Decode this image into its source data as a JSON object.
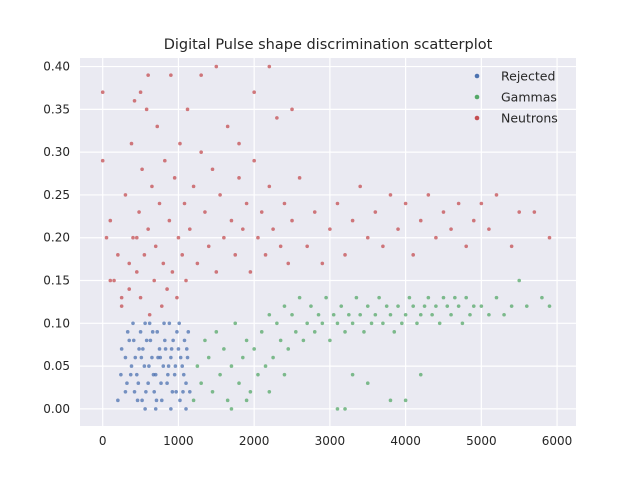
{
  "chart_data": {
    "type": "scatter",
    "title": "Digital Pulse shape discrimination scatterplot",
    "xlabel": "",
    "ylabel": "",
    "xlim": [
      -300,
      6250
    ],
    "ylim": [
      -0.02,
      0.41
    ],
    "x_ticks": [
      0,
      1000,
      2000,
      3000,
      4000,
      5000,
      6000
    ],
    "x_tick_labels": [
      "0",
      "1000",
      "2000",
      "3000",
      "4000",
      "5000",
      "6000"
    ],
    "y_ticks": [
      0.0,
      0.05,
      0.1,
      0.15,
      0.2,
      0.25,
      0.3,
      0.35,
      0.4
    ],
    "y_tick_labels": [
      "0.00",
      "0.05",
      "0.10",
      "0.15",
      "0.20",
      "0.25",
      "0.30",
      "0.35",
      "0.40"
    ],
    "grid": true,
    "legend_position": "top-right",
    "series": [
      {
        "name": "Rejected",
        "color": "#4c72b0",
        "points": [
          [
            200,
            0.01
          ],
          [
            250,
            0.07
          ],
          [
            300,
            0.06
          ],
          [
            320,
            0.03
          ],
          [
            350,
            0.08
          ],
          [
            380,
            0.05
          ],
          [
            400,
            0.1
          ],
          [
            420,
            0.02
          ],
          [
            450,
            0.04
          ],
          [
            480,
            0.07
          ],
          [
            500,
            0.09
          ],
          [
            520,
            0.01
          ],
          [
            550,
            0.05
          ],
          [
            580,
            0.08
          ],
          [
            600,
            0.03
          ],
          [
            620,
            0.1
          ],
          [
            650,
            0.06
          ],
          [
            680,
            0.02
          ],
          [
            700,
            0.04
          ],
          [
            720,
            0.09
          ],
          [
            750,
            0.07
          ],
          [
            780,
            0.01
          ],
          [
            800,
            0.05
          ],
          [
            820,
            0.08
          ],
          [
            850,
            0.03
          ],
          [
            880,
            0.1
          ],
          [
            900,
            0.06
          ],
          [
            920,
            0.02
          ],
          [
            950,
            0.04
          ],
          [
            980,
            0.09
          ],
          [
            1000,
            0.07
          ],
          [
            1020,
            0.01
          ],
          [
            1050,
            0.05
          ],
          [
            1080,
            0.08
          ],
          [
            1100,
            0.03
          ],
          [
            1120,
            0.06
          ],
          [
            1150,
            0.02
          ],
          [
            430,
            0.06
          ],
          [
            470,
            0.03
          ],
          [
            530,
            0.07
          ],
          [
            570,
            0.02
          ],
          [
            630,
            0.08
          ],
          [
            670,
            0.04
          ],
          [
            730,
            0.06
          ],
          [
            770,
            0.03
          ],
          [
            830,
            0.07
          ],
          [
            870,
            0.05
          ],
          [
            930,
            0.08
          ],
          [
            970,
            0.02
          ],
          [
            1030,
            0.06
          ],
          [
            1070,
            0.04
          ],
          [
            1130,
            0.09
          ],
          [
            330,
            0.09
          ],
          [
            370,
            0.04
          ],
          [
            410,
            0.08
          ],
          [
            460,
            0.01
          ],
          [
            510,
            0.06
          ],
          [
            560,
            0.1
          ],
          [
            610,
            0.05
          ],
          [
            660,
            0.09
          ],
          [
            710,
            0.01
          ],
          [
            760,
            0.06
          ],
          [
            810,
            0.1
          ],
          [
            860,
            0.04
          ],
          [
            910,
            0.07
          ],
          [
            960,
            0.05
          ],
          [
            1010,
            0.1
          ],
          [
            1060,
            0.02
          ],
          [
            1110,
            0.07
          ],
          [
            300,
            0.02
          ],
          [
            560,
            0.0
          ],
          [
            700,
            0.0
          ],
          [
            900,
            0.0
          ],
          [
            1100,
            0.0
          ],
          [
            240,
            0.04
          ]
        ]
      },
      {
        "name": "Gammas",
        "color": "#55a868",
        "points": [
          [
            1200,
            0.01
          ],
          [
            1250,
            0.05
          ],
          [
            1300,
            0.03
          ],
          [
            1350,
            0.08
          ],
          [
            1400,
            0.06
          ],
          [
            1450,
            0.02
          ],
          [
            1500,
            0.09
          ],
          [
            1550,
            0.04
          ],
          [
            1600,
            0.07
          ],
          [
            1650,
            0.01
          ],
          [
            1700,
            0.05
          ],
          [
            1750,
            0.1
          ],
          [
            1800,
            0.03
          ],
          [
            1850,
            0.06
          ],
          [
            1900,
            0.08
          ],
          [
            1950,
            0.02
          ],
          [
            2000,
            0.07
          ],
          [
            2050,
            0.04
          ],
          [
            2100,
            0.09
          ],
          [
            2150,
            0.05
          ],
          [
            2200,
            0.11
          ],
          [
            2250,
            0.06
          ],
          [
            2300,
            0.1
          ],
          [
            2350,
            0.08
          ],
          [
            2400,
            0.12
          ],
          [
            2450,
            0.07
          ],
          [
            2500,
            0.11
          ],
          [
            2550,
            0.09
          ],
          [
            2600,
            0.13
          ],
          [
            2650,
            0.08
          ],
          [
            2700,
            0.1
          ],
          [
            2750,
            0.12
          ],
          [
            2800,
            0.09
          ],
          [
            2850,
            0.11
          ],
          [
            2900,
            0.1
          ],
          [
            2950,
            0.13
          ],
          [
            3000,
            0.08
          ],
          [
            3050,
            0.11
          ],
          [
            3100,
            0.1
          ],
          [
            3150,
            0.12
          ],
          [
            3200,
            0.09
          ],
          [
            3250,
            0.11
          ],
          [
            3300,
            0.1
          ],
          [
            3350,
            0.13
          ],
          [
            3400,
            0.11
          ],
          [
            3450,
            0.09
          ],
          [
            3500,
            0.12
          ],
          [
            3550,
            0.1
          ],
          [
            3600,
            0.11
          ],
          [
            3650,
            0.13
          ],
          [
            3700,
            0.1
          ],
          [
            3750,
            0.12
          ],
          [
            3800,
            0.11
          ],
          [
            3850,
            0.09
          ],
          [
            3900,
            0.12
          ],
          [
            3950,
            0.1
          ],
          [
            4000,
            0.11
          ],
          [
            4050,
            0.13
          ],
          [
            4100,
            0.12
          ],
          [
            4150,
            0.1
          ],
          [
            4200,
            0.11
          ],
          [
            4250,
            0.12
          ],
          [
            4300,
            0.13
          ],
          [
            4350,
            0.11
          ],
          [
            4400,
            0.12
          ],
          [
            4450,
            0.1
          ],
          [
            4500,
            0.13
          ],
          [
            4550,
            0.12
          ],
          [
            4600,
            0.11
          ],
          [
            4650,
            0.13
          ],
          [
            4700,
            0.12
          ],
          [
            4750,
            0.1
          ],
          [
            4800,
            0.13
          ],
          [
            4850,
            0.11
          ],
          [
            4900,
            0.12
          ],
          [
            5000,
            0.12
          ],
          [
            5100,
            0.11
          ],
          [
            5200,
            0.13
          ],
          [
            5300,
            0.11
          ],
          [
            5400,
            0.12
          ],
          [
            5500,
            0.15
          ],
          [
            5600,
            0.12
          ],
          [
            5800,
            0.13
          ],
          [
            5900,
            0.12
          ],
          [
            3100,
            0.0
          ],
          [
            3200,
            0.0
          ],
          [
            3800,
            0.01
          ],
          [
            4000,
            0.01
          ],
          [
            3300,
            0.04
          ],
          [
            3500,
            0.03
          ],
          [
            4200,
            0.04
          ],
          [
            2400,
            0.04
          ],
          [
            2200,
            0.02
          ],
          [
            1700,
            0.0
          ],
          [
            1900,
            0.01
          ]
        ]
      },
      {
        "name": "Neutrons",
        "color": "#c44e52",
        "points": [
          [
            0,
            0.37
          ],
          [
            0,
            0.29
          ],
          [
            50,
            0.2
          ],
          [
            100,
            0.22
          ],
          [
            150,
            0.15
          ],
          [
            200,
            0.18
          ],
          [
            250,
            0.12
          ],
          [
            300,
            0.25
          ],
          [
            350,
            0.14
          ],
          [
            380,
            0.31
          ],
          [
            400,
            0.2
          ],
          [
            420,
            0.36
          ],
          [
            450,
            0.16
          ],
          [
            480,
            0.23
          ],
          [
            500,
            0.13
          ],
          [
            520,
            0.28
          ],
          [
            550,
            0.18
          ],
          [
            580,
            0.35
          ],
          [
            600,
            0.21
          ],
          [
            620,
            0.11
          ],
          [
            650,
            0.26
          ],
          [
            680,
            0.15
          ],
          [
            700,
            0.19
          ],
          [
            720,
            0.33
          ],
          [
            750,
            0.24
          ],
          [
            780,
            0.12
          ],
          [
            800,
            0.17
          ],
          [
            820,
            0.29
          ],
          [
            850,
            0.14
          ],
          [
            880,
            0.22
          ],
          [
            900,
            0.39
          ],
          [
            920,
            0.16
          ],
          [
            950,
            0.27
          ],
          [
            980,
            0.13
          ],
          [
            1000,
            0.2
          ],
          [
            1020,
            0.31
          ],
          [
            1050,
            0.18
          ],
          [
            1080,
            0.24
          ],
          [
            1100,
            0.15
          ],
          [
            1120,
            0.35
          ],
          [
            1150,
            0.21
          ],
          [
            1200,
            0.26
          ],
          [
            1250,
            0.17
          ],
          [
            1300,
            0.3
          ],
          [
            1350,
            0.23
          ],
          [
            1400,
            0.19
          ],
          [
            1450,
            0.28
          ],
          [
            1500,
            0.16
          ],
          [
            1550,
            0.25
          ],
          [
            1600,
            0.2
          ],
          [
            1650,
            0.33
          ],
          [
            1700,
            0.22
          ],
          [
            1750,
            0.18
          ],
          [
            1800,
            0.27
          ],
          [
            1850,
            0.21
          ],
          [
            1900,
            0.24
          ],
          [
            1950,
            0.16
          ],
          [
            2000,
            0.29
          ],
          [
            2050,
            0.2
          ],
          [
            2100,
            0.23
          ],
          [
            2150,
            0.18
          ],
          [
            2200,
            0.26
          ],
          [
            2250,
            0.21
          ],
          [
            2300,
            0.34
          ],
          [
            2350,
            0.19
          ],
          [
            2400,
            0.24
          ],
          [
            2450,
            0.17
          ],
          [
            2500,
            0.22
          ],
          [
            2600,
            0.27
          ],
          [
            2700,
            0.19
          ],
          [
            2800,
            0.23
          ],
          [
            2900,
            0.17
          ],
          [
            3000,
            0.21
          ],
          [
            3100,
            0.24
          ],
          [
            3200,
            0.18
          ],
          [
            3300,
            0.22
          ],
          [
            3400,
            0.26
          ],
          [
            3500,
            0.2
          ],
          [
            3600,
            0.23
          ],
          [
            3700,
            0.19
          ],
          [
            3800,
            0.25
          ],
          [
            3900,
            0.21
          ],
          [
            4000,
            0.24
          ],
          [
            4100,
            0.18
          ],
          [
            4200,
            0.22
          ],
          [
            4300,
            0.25
          ],
          [
            4400,
            0.2
          ],
          [
            4500,
            0.23
          ],
          [
            4600,
            0.21
          ],
          [
            4700,
            0.24
          ],
          [
            4800,
            0.19
          ],
          [
            4900,
            0.22
          ],
          [
            5000,
            0.24
          ],
          [
            5100,
            0.21
          ],
          [
            5200,
            0.25
          ],
          [
            5400,
            0.19
          ],
          [
            5500,
            0.23
          ],
          [
            5700,
            0.23
          ],
          [
            5900,
            0.2
          ],
          [
            1500,
            0.4
          ],
          [
            1300,
            0.39
          ],
          [
            2200,
            0.4
          ],
          [
            600,
            0.39
          ],
          [
            1800,
            0.31
          ],
          [
            2500,
            0.35
          ],
          [
            2000,
            0.37
          ],
          [
            500,
            0.37
          ],
          [
            100,
            0.15
          ],
          [
            250,
            0.13
          ],
          [
            350,
            0.17
          ],
          [
            450,
            0.2
          ]
        ]
      }
    ]
  }
}
